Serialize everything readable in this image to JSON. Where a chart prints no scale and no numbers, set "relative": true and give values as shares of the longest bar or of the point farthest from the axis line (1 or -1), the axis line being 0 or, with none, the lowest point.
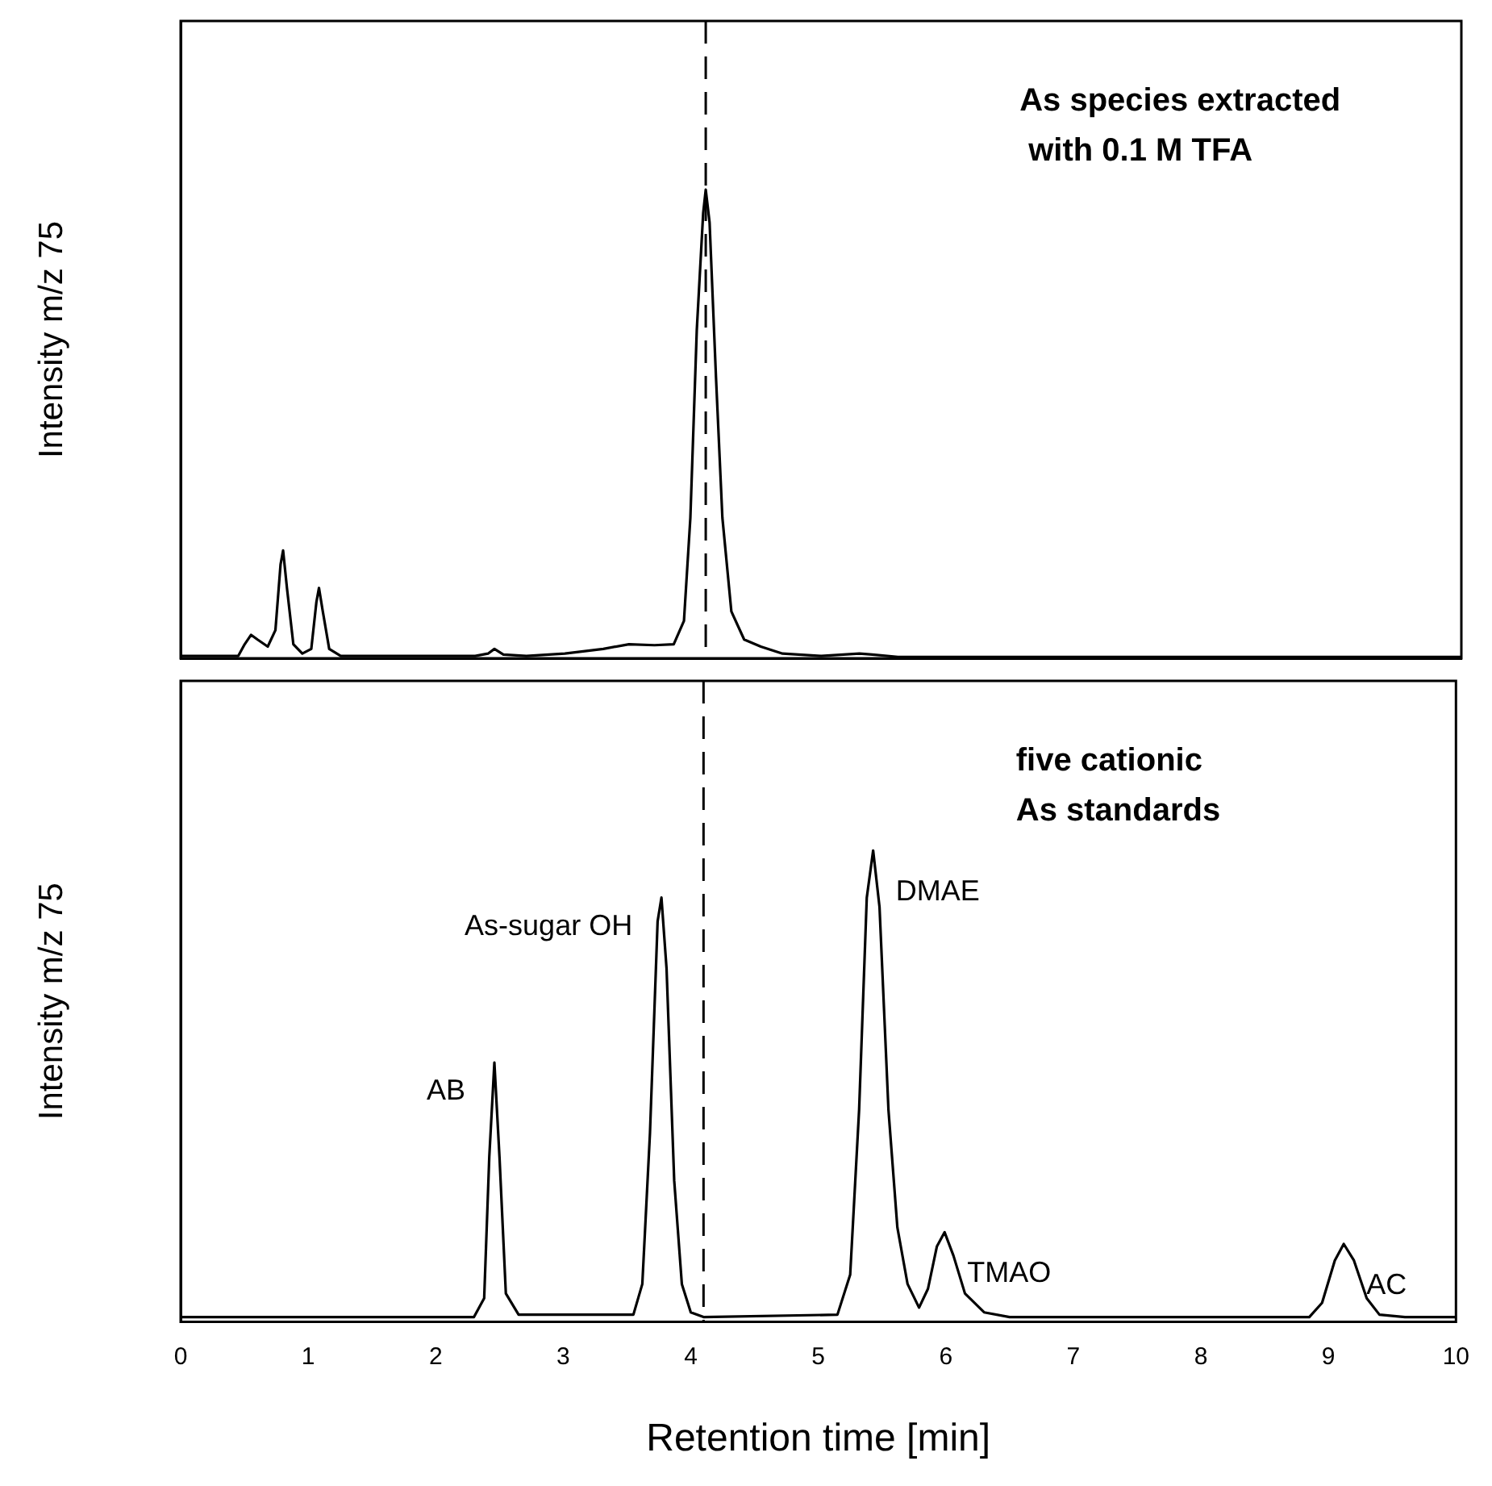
{
  "chart_data": [
    {
      "type": "line",
      "relative": true,
      "ylabel": "Intensity m/z 75",
      "xlim": [
        0,
        10
      ],
      "tick_labels": false,
      "grid": false,
      "legend": false,
      "annotations": [
        "As species extracted\n with 0.1 M TFA"
      ],
      "ref_lines": [
        {
          "axis": "x",
          "value": 4.1,
          "color": "#000000",
          "line_style": "dashed"
        }
      ],
      "series": [
        {
          "color": "#000000",
          "x": [
            0,
            0.45,
            0.5,
            0.55,
            0.6,
            0.68,
            0.74,
            0.78,
            0.8,
            0.83,
            0.88,
            0.95,
            1.02,
            1.06,
            1.08,
            1.11,
            1.16,
            1.25,
            2.3,
            2.4,
            2.45,
            2.52,
            2.7,
            3.0,
            3.3,
            3.5,
            3.7,
            3.85,
            3.93,
            3.98,
            4.03,
            4.08,
            4.1,
            4.13,
            4.18,
            4.23,
            4.3,
            4.4,
            4.53,
            4.7,
            5.0,
            5.3,
            5.4,
            5.6,
            10
          ],
          "values": [
            0.005,
            0.005,
            0.03,
            0.05,
            0.04,
            0.025,
            0.06,
            0.2,
            0.23,
            0.15,
            0.03,
            0.01,
            0.02,
            0.12,
            0.15,
            0.1,
            0.02,
            0.005,
            0.005,
            0.01,
            0.02,
            0.008,
            0.005,
            0.01,
            0.02,
            0.03,
            0.028,
            0.03,
            0.08,
            0.3,
            0.7,
            0.95,
            1,
            0.93,
            0.6,
            0.3,
            0.1,
            0.04,
            0.025,
            0.01,
            0.005,
            0.01,
            0.008,
            0.003,
            0.003
          ]
        }
      ]
    },
    {
      "type": "line",
      "relative": true,
      "ylabel": "Intensity m/z 75",
      "xlabel": "Retention time [min]",
      "xlim": [
        0,
        10
      ],
      "xticks": [
        0,
        1,
        2,
        3,
        4,
        5,
        6,
        7,
        8,
        9,
        10
      ],
      "tick_labels": "x",
      "grid": false,
      "legend": false,
      "annotations": [
        "five cationic\nAs standards",
        {
          "text": "AB",
          "x": 2.46,
          "y": 0.55
        },
        {
          "text": "As-sugar OH",
          "x": 3.77,
          "y": 0.9
        },
        {
          "text": "DMAE",
          "x": 5.43,
          "y": 1
        },
        {
          "text": "TMAO",
          "x": 5.99,
          "y": 0.19
        },
        {
          "text": "AC",
          "x": 9.12,
          "y": 0.165
        }
      ],
      "ref_lines": [
        {
          "axis": "x",
          "value": 4.1,
          "color": "#000000",
          "line_style": "dashed"
        }
      ],
      "series": [
        {
          "color": "#000000",
          "x": [
            0,
            2.3,
            2.38,
            2.42,
            2.46,
            2.5,
            2.55,
            2.65,
            3.55,
            3.62,
            3.68,
            3.74,
            3.77,
            3.81,
            3.87,
            3.93,
            4.0,
            4.1,
            5.15,
            5.25,
            5.32,
            5.38,
            5.43,
            5.48,
            5.55,
            5.62,
            5.7,
            5.79,
            5.86,
            5.93,
            5.99,
            6.06,
            6.15,
            6.3,
            6.5,
            8.85,
            8.95,
            9.05,
            9.12,
            9.2,
            9.3,
            9.4,
            9.6,
            10
          ],
          "values": [
            0.01,
            0.01,
            0.05,
            0.35,
            0.55,
            0.35,
            0.06,
            0.015,
            0.015,
            0.08,
            0.4,
            0.85,
            0.9,
            0.75,
            0.3,
            0.08,
            0.02,
            0.01,
            0.015,
            0.1,
            0.45,
            0.9,
            1,
            0.88,
            0.45,
            0.2,
            0.08,
            0.03,
            0.07,
            0.16,
            0.19,
            0.14,
            0.06,
            0.02,
            0.01,
            0.01,
            0.04,
            0.13,
            0.165,
            0.13,
            0.05,
            0.015,
            0.01,
            0.01
          ]
        }
      ]
    }
  ]
}
